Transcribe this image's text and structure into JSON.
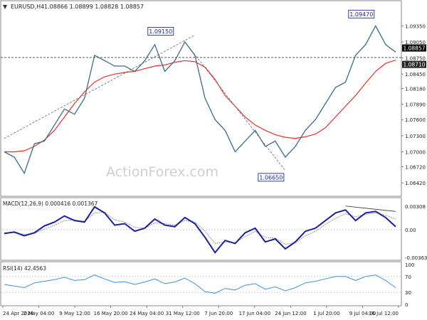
{
  "header": {
    "symbol": "EURUSD,H4",
    "ohlc": "1.08866 1.08899 1.08828 1.08857",
    "arrow": "▼"
  },
  "watermark": "ActionForex.com",
  "colors": {
    "price_line": "#3a6d8c",
    "moving_average": "#e8302a",
    "macd": "#1a1f9e",
    "macd_signal": "#9a9a9a",
    "rsi": "#3f8fdc",
    "trendline": "#666666",
    "label_border": "#1a2a9a",
    "current_price_tag": "#000000",
    "ma_price_tag": "#000000"
  },
  "chart_data": [
    {
      "type": "line",
      "panel": "price",
      "title": "EURUSD,H4",
      "ylim": [
        1.0625,
        1.0962
      ],
      "y_ticks": [
        "1.09350",
        "1.09050",
        "1.08750",
        "1.08450",
        "1.08180",
        "1.07890",
        "1.07600",
        "1.07300",
        "1.07000",
        "1.06720",
        "1.06420"
      ],
      "y_tick_values": [
        1.0935,
        1.0905,
        1.0875,
        1.0845,
        1.0818,
        1.0789,
        1.076,
        1.073,
        1.07,
        1.0672,
        1.0642
      ],
      "x_ticks": [
        "24 Apr 2024",
        "2 May 04:00",
        "9 May 12:00",
        "16 May 20:00",
        "24 May 04:00",
        "31 May 12:00",
        "7 Jun 20:00",
        "17 Jun 04:00",
        "24 Jun 12:00",
        "1 Jul 20:00",
        "9 Jul 04:00",
        "16 Jul 12:00"
      ],
      "series": [
        {
          "name": "EURUSD",
          "x": [
            "24 Apr",
            "26 Apr",
            "29 Apr",
            "1 May",
            "3 May",
            "6 May",
            "8 May",
            "10 May",
            "13 May",
            "15 May",
            "17 May",
            "20 May",
            "22 May",
            "24 May",
            "27 May",
            "29 May",
            "31 May",
            "3 Jun",
            "4 Jun",
            "5 Jun",
            "7 Jun",
            "10 Jun",
            "12 Jun",
            "14 Jun",
            "17 Jun",
            "19 Jun",
            "21 Jun",
            "24 Jun",
            "26 Jun",
            "28 Jun",
            "1 Jul",
            "3 Jul",
            "5 Jul",
            "8 Jul",
            "10 Jul",
            "12 Jul",
            "15 Jul",
            "16 Jul",
            "17 Jul",
            "18 Jul"
          ],
          "values": [
            1.07,
            1.069,
            1.066,
            1.0715,
            1.072,
            1.075,
            1.078,
            1.077,
            1.08,
            1.088,
            1.087,
            1.086,
            1.086,
            1.085,
            1.087,
            1.09,
            1.085,
            1.087,
            1.0905,
            1.088,
            1.08,
            1.076,
            1.074,
            1.07,
            1.072,
            1.074,
            1.071,
            1.072,
            1.069,
            1.071,
            1.074,
            1.076,
            1.079,
            1.082,
            1.083,
            1.088,
            1.09,
            1.0935,
            1.09,
            1.0886
          ]
        },
        {
          "name": "Moving Average",
          "values": [
            1.07,
            1.07,
            1.0702,
            1.071,
            1.0722,
            1.074,
            1.0765,
            1.079,
            1.0812,
            1.083,
            1.084,
            1.0845,
            1.0848,
            1.085,
            1.0855,
            1.086,
            1.0862,
            1.0867,
            1.087,
            1.0868,
            1.0858,
            1.0835,
            1.0805,
            1.0785,
            1.0765,
            1.075,
            1.074,
            1.0732,
            1.0727,
            1.0725,
            1.0728,
            1.0733,
            1.0745,
            1.0765,
            1.0785,
            1.0805,
            1.0828,
            1.085,
            1.0865,
            1.0871
          ]
        }
      ],
      "annotations": [
        {
          "label": "1.09150",
          "x": "3 Jun",
          "y": 1.0915
        },
        {
          "label": "1.06650",
          "x": "26 Jun",
          "y": 1.0665
        },
        {
          "label": "1.09470",
          "x": "16 Jul",
          "y": 1.0947
        }
      ],
      "horizontal_lines": [
        {
          "value": 1.0876
        }
      ],
      "price_tags": [
        {
          "label": "1.08857",
          "value": 1.08857
        },
        {
          "label": "1.08710",
          "value": 1.0871
        }
      ],
      "grid": false
    },
    {
      "type": "line",
      "panel": "macd",
      "title": "MACD(12,26,9) 0.000416 0.001367",
      "ylim": [
        -0.00363,
        0.00308
      ],
      "y_ticks": [
        "0.00308",
        "0.00",
        "-0.00363"
      ],
      "y_tick_values": [
        0.00308,
        0.0,
        -0.00363
      ],
      "series": [
        {
          "name": "MACD",
          "values": [
            -0.0005,
            -0.0003,
            -0.0008,
            -0.0004,
            0.0005,
            0.001,
            0.0018,
            0.0012,
            0.001,
            0.003,
            0.0022,
            0.0006,
            0.0008,
            -0.0002,
            0.0002,
            0.0014,
            0.0006,
            0.0004,
            0.0016,
            0.0008,
            -0.001,
            -0.003,
            -0.0014,
            -0.0018,
            -0.0004,
            0.0002,
            -0.0016,
            -0.0012,
            -0.0025,
            -0.0016,
            -0.0002,
            0.0002,
            0.0012,
            0.0022,
            0.0026,
            0.0012,
            0.0022,
            0.0024,
            0.0016,
            0.0004
          ]
        },
        {
          "name": "Signal",
          "values": [
            -0.0004,
            -0.0004,
            -0.0006,
            -0.0005,
            0.0001,
            0.0006,
            0.0012,
            0.0013,
            0.0011,
            0.0022,
            0.0023,
            0.0013,
            0.001,
            0.0003,
            0.0002,
            0.0009,
            0.0008,
            0.0006,
            0.0012,
            0.001,
            -0.0002,
            -0.0018,
            -0.0016,
            -0.0017,
            -0.0009,
            -0.0002,
            -0.001,
            -0.0011,
            -0.0019,
            -0.0017,
            -0.0008,
            -0.0002,
            0.0007,
            0.0015,
            0.0021,
            0.0017,
            0.002,
            0.0022,
            0.0019,
            0.0014
          ]
        }
      ]
    },
    {
      "type": "line",
      "panel": "rsi",
      "title": "RSI(14) 42.4563",
      "ylim": [
        0,
        100
      ],
      "y_ticks": [
        "100",
        "70",
        "30",
        "0"
      ],
      "y_tick_values": [
        100,
        70,
        30,
        0
      ],
      "series": [
        {
          "name": "RSI",
          "values": [
            50,
            46,
            42,
            54,
            58,
            62,
            68,
            60,
            62,
            74,
            64,
            55,
            57,
            50,
            56,
            64,
            52,
            56,
            66,
            52,
            32,
            28,
            40,
            36,
            48,
            52,
            38,
            44,
            34,
            42,
            54,
            58,
            64,
            70,
            70,
            60,
            70,
            74,
            60,
            42
          ]
        }
      ]
    }
  ]
}
